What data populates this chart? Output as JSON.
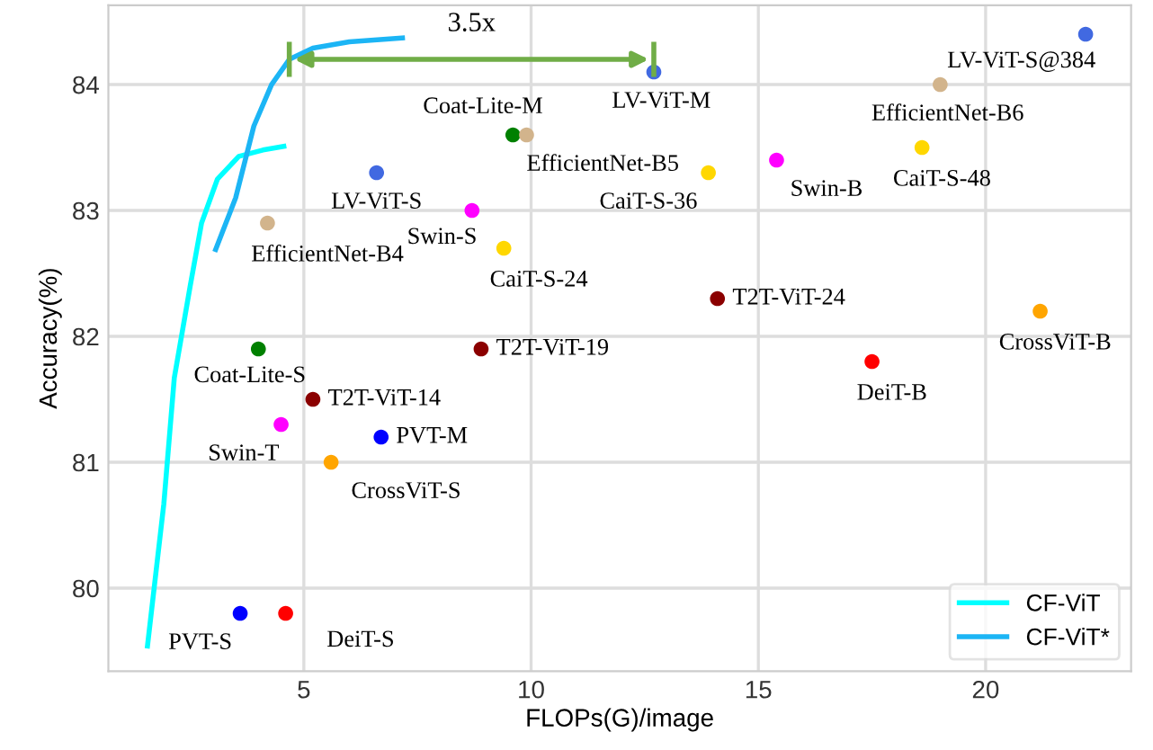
{
  "chart_data": {
    "type": "scatter",
    "xlabel": "FLOPs(G)/image",
    "ylabel": "Accuracy(%)",
    "xlim": [
      0.7,
      23.2
    ],
    "xticks": [
      5,
      10,
      15,
      20
    ],
    "ylim": [
      79.34,
      84.63
    ],
    "yticks": [
      80,
      81,
      82,
      83,
      84
    ],
    "grid": true,
    "legend": "bottom right",
    "marker": "circle",
    "annotations": [
      "3.5x"
    ],
    "series": [
      {
        "name": "CF-ViT",
        "type": "line",
        "marker": "none",
        "color": "#00ffff",
        "x": [
          1.56,
          1.92,
          2.15,
          2.5,
          2.75,
          3.1,
          3.57,
          4.1,
          4.56
        ],
        "values": [
          79.54,
          80.67,
          81.67,
          82.4,
          82.9,
          83.25,
          83.43,
          83.48,
          83.51
        ]
      },
      {
        "name": "CF-ViT*",
        "type": "line",
        "marker": "none",
        "color": "#1cb5f5",
        "x": [
          3.06,
          3.5,
          3.9,
          4.29,
          4.68,
          5.2,
          6.0,
          7.17
        ],
        "values": [
          82.69,
          83.1,
          83.67,
          84.0,
          84.2,
          84.29,
          84.34,
          84.37
        ]
      },
      {
        "name": "LV-ViT-S@384",
        "color": "#4169e1",
        "x": [
          22.2
        ],
        "values": [
          84.4
        ]
      },
      {
        "name": "LV-ViT-M",
        "color": "#4169e1",
        "x": [
          12.7
        ],
        "values": [
          84.1
        ]
      },
      {
        "name": "EfficientNet-B6",
        "color": "#d2b48c",
        "x": [
          19.0
        ],
        "values": [
          84.0
        ]
      },
      {
        "name": "Coat-Lite-M",
        "color": "#008000",
        "x": [
          9.6
        ],
        "values": [
          83.6
        ]
      },
      {
        "name": "EfficientNet-B5",
        "color": "#d2b48c",
        "x": [
          9.9
        ],
        "values": [
          83.6
        ]
      },
      {
        "name": "CaiT-S-36",
        "color": "#ffd700",
        "x": [
          13.9
        ],
        "values": [
          83.3
        ]
      },
      {
        "name": "Swin-B",
        "color": "#ff00ff",
        "x": [
          15.4
        ],
        "values": [
          83.4
        ]
      },
      {
        "name": "CaiT-S-48",
        "color": "#ffd700",
        "x": [
          18.6
        ],
        "values": [
          83.5
        ]
      },
      {
        "name": "LV-ViT-S",
        "color": "#4169e1",
        "x": [
          6.6
        ],
        "values": [
          83.3
        ]
      },
      {
        "name": "EfficientNet-B4",
        "color": "#d2b48c",
        "x": [
          4.2
        ],
        "values": [
          82.9
        ]
      },
      {
        "name": "Swin-S",
        "color": "#ff00ff",
        "x": [
          8.7
        ],
        "values": [
          83.0
        ]
      },
      {
        "name": "CaiT-S-24",
        "color": "#ffd700",
        "x": [
          9.4
        ],
        "values": [
          82.7
        ]
      },
      {
        "name": "T2T-ViT-24",
        "color": "#8b0000",
        "x": [
          14.1
        ],
        "values": [
          82.3
        ]
      },
      {
        "name": "CrossViT-B",
        "color": "#ffa500",
        "x": [
          21.2
        ],
        "values": [
          82.2
        ]
      },
      {
        "name": "Coat-Lite-S",
        "color": "#008000",
        "x": [
          4.0
        ],
        "values": [
          81.9
        ]
      },
      {
        "name": "T2T-ViT-19",
        "color": "#8b0000",
        "x": [
          8.9
        ],
        "values": [
          81.9
        ]
      },
      {
        "name": "DeiT-B",
        "color": "#ff0000",
        "x": [
          17.5
        ],
        "values": [
          81.8
        ]
      },
      {
        "name": "T2T-ViT-14",
        "color": "#8b0000",
        "x": [
          5.2
        ],
        "values": [
          81.5
        ]
      },
      {
        "name": "Swin-T",
        "color": "#ff00ff",
        "x": [
          4.5
        ],
        "values": [
          81.3
        ]
      },
      {
        "name": "PVT-M",
        "color": "#0000ff",
        "x": [
          6.7
        ],
        "values": [
          81.2
        ]
      },
      {
        "name": "CrossViT-S",
        "color": "#ffa500",
        "x": [
          5.6
        ],
        "values": [
          81.0
        ]
      },
      {
        "name": "PVT-S",
        "color": "#0000ff",
        "x": [
          3.6
        ],
        "values": [
          79.8
        ]
      },
      {
        "name": "DeiT-S",
        "color": "#ff0000",
        "x": [
          4.6
        ],
        "values": [
          79.8
        ]
      }
    ]
  }
}
